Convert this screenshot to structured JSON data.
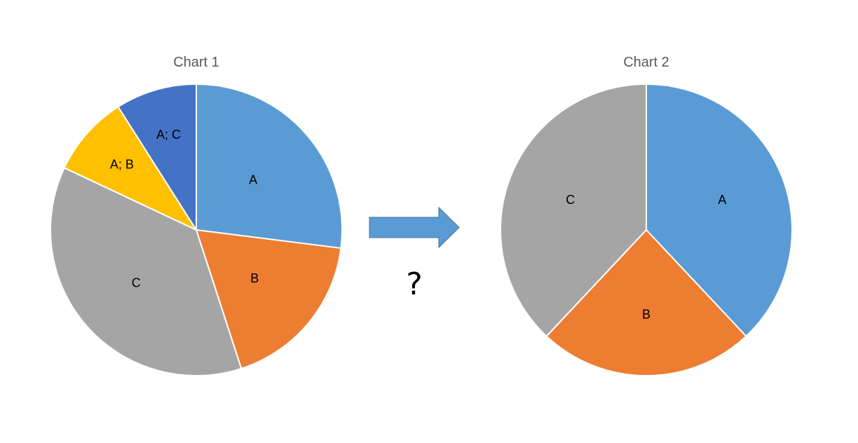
{
  "chart_data": [
    {
      "type": "pie",
      "title": "Chart 1",
      "slices": [
        {
          "label": "A",
          "value": 27,
          "color": "#5b9bd5"
        },
        {
          "label": "B",
          "value": 18,
          "color": "#ed7d31"
        },
        {
          "label": "C",
          "value": 37,
          "color": "#a5a5a5"
        },
        {
          "label": "A; B",
          "value": 9,
          "color": "#ffc000"
        },
        {
          "label": "A; C",
          "value": 9,
          "color": "#4472c4"
        }
      ]
    },
    {
      "type": "pie",
      "title": "Chart 2",
      "slices": [
        {
          "label": "A",
          "value": 38,
          "color": "#5b9bd5"
        },
        {
          "label": "B",
          "value": 24,
          "color": "#ed7d31"
        },
        {
          "label": "C",
          "value": 38,
          "color": "#a5a5a5"
        }
      ]
    }
  ],
  "transition": {
    "arrow_icon": "right-arrow-icon",
    "arrow_color": "#5b9bd5",
    "symbol": "?"
  }
}
